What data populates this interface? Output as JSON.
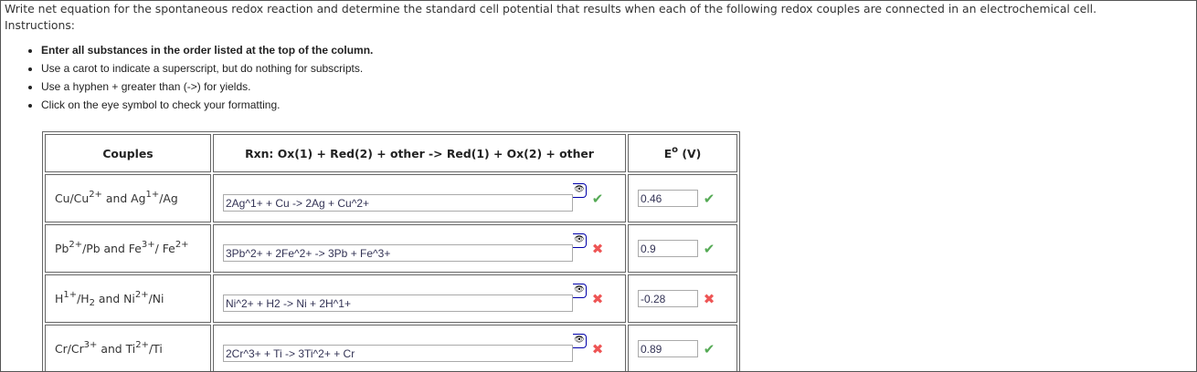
{
  "question": "Write net equation for the spontaneous redox reaction and determine the standard cell potential that results when each of the following redox couples are connected in an electrochemical cell.",
  "instructions_label": "Instructions:",
  "instructions": [
    {
      "text": "Enter all substances in the order listed at the top of the column.",
      "bold": true
    },
    {
      "text": "Use a carot to indicate a superscript, but do nothing for subscripts."
    },
    {
      "text": "Use a hyphen + greater than (->) for yields."
    },
    {
      "text": "Click on the eye symbol to check your formatting."
    }
  ],
  "headers": {
    "couples": "Couples",
    "rxn": "Rxn: Ox(1) + Red(2) + other -> Red(1) + Ox(2) + other",
    "e": "E",
    "e_sup": "o",
    "e_unit": " (V)"
  },
  "colors": {
    "correct": "#55aa55",
    "incorrect": "#ee5555"
  },
  "rows": [
    {
      "couple": [
        {
          "t": "Cu/Cu"
        },
        {
          "sup": "2+"
        },
        {
          "t": " and Ag"
        },
        {
          "sup": "1+"
        },
        {
          "t": "/Ag"
        }
      ],
      "rxn": "2Ag^1+ + Cu -> 2Ag + Cu^2+",
      "rxn_status": "check-icon",
      "e": "0.46",
      "e_status": "check-icon"
    },
    {
      "couple": [
        {
          "t": "Pb"
        },
        {
          "sup": "2+"
        },
        {
          "t": "/Pb and Fe"
        },
        {
          "sup": "3+"
        },
        {
          "t": "/ Fe"
        },
        {
          "sup": "2+"
        }
      ],
      "rxn": "3Pb^2+ + 2Fe^2+ -> 3Pb + Fe^3+",
      "rxn_status": "x-icon",
      "e": "0.9",
      "e_status": "check-icon"
    },
    {
      "couple": [
        {
          "t": "H"
        },
        {
          "sup": "1+"
        },
        {
          "t": "/H"
        },
        {
          "sub": "2"
        },
        {
          "t": " and Ni"
        },
        {
          "sup": "2+"
        },
        {
          "t": "/Ni"
        }
      ],
      "rxn": "Ni^2+ + H2 -> Ni + 2H^1+",
      "rxn_status": "x-icon",
      "e": "-0.28",
      "e_status": "x-icon"
    },
    {
      "couple": [
        {
          "t": "Cr/Cr"
        },
        {
          "sup": "3+"
        },
        {
          "t": " and Ti"
        },
        {
          "sup": "2+"
        },
        {
          "t": "/Ti"
        }
      ],
      "rxn": "2Cr^3+ + Ti -> 3Ti^2+ + Cr",
      "rxn_status": "x-icon",
      "e": "0.89",
      "e_status": "check-icon"
    }
  ]
}
